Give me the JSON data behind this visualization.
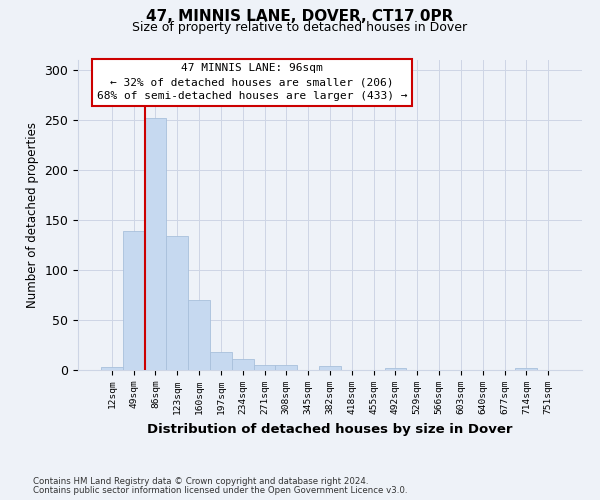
{
  "title1": "47, MINNIS LANE, DOVER, CT17 0PR",
  "title2": "Size of property relative to detached houses in Dover",
  "xlabel": "Distribution of detached houses by size in Dover",
  "ylabel": "Number of detached properties",
  "bar_labels": [
    "12sqm",
    "49sqm",
    "86sqm",
    "123sqm",
    "160sqm",
    "197sqm",
    "234sqm",
    "271sqm",
    "308sqm",
    "345sqm",
    "382sqm",
    "418sqm",
    "455sqm",
    "492sqm",
    "529sqm",
    "566sqm",
    "603sqm",
    "640sqm",
    "677sqm",
    "714sqm",
    "751sqm"
  ],
  "bar_values": [
    3,
    139,
    252,
    134,
    70,
    18,
    11,
    5,
    5,
    0,
    4,
    0,
    0,
    2,
    0,
    0,
    0,
    0,
    0,
    2,
    0
  ],
  "bar_color": "#c6d9f0",
  "bar_edge_color": "#a8c0dc",
  "vline_x_idx": 2,
  "vline_color": "#cc0000",
  "annotation_text": "47 MINNIS LANE: 96sqm\n← 32% of detached houses are smaller (206)\n68% of semi-detached houses are larger (433) →",
  "ylim": [
    0,
    310
  ],
  "yticks": [
    0,
    50,
    100,
    150,
    200,
    250,
    300
  ],
  "footer1": "Contains HM Land Registry data © Crown copyright and database right 2024.",
  "footer2": "Contains public sector information licensed under the Open Government Licence v3.0.",
  "bg_color": "#eef2f8",
  "plot_bg_color": "#eef2f8",
  "grid_color": "#cdd5e5"
}
